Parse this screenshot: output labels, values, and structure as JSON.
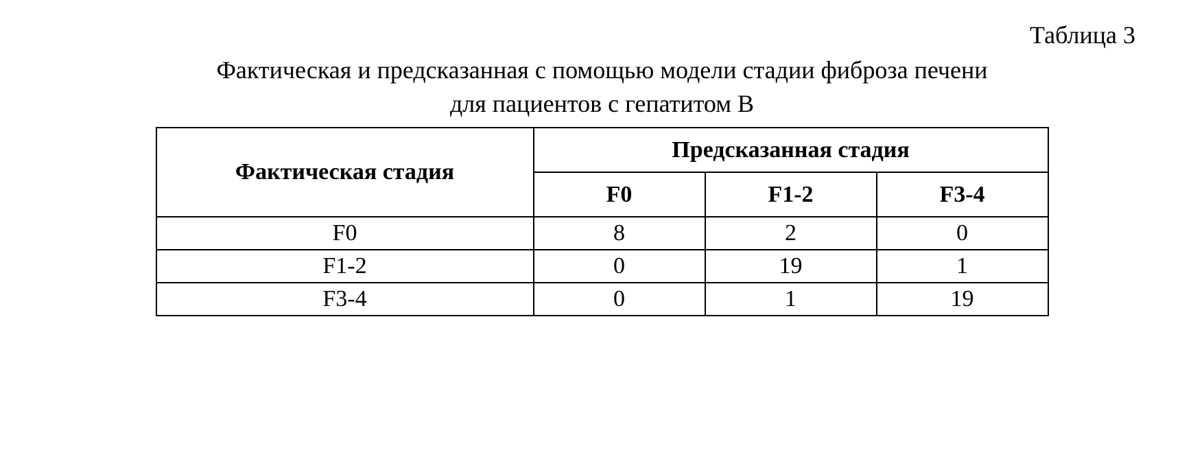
{
  "table_number": "Таблица 3",
  "caption_line1": "Фактическая и предсказанная с помощью модели стадии фиброза печени",
  "caption_line2": "для пациентов с гепатитом B",
  "headers": {
    "actual": "Фактическая стадия",
    "predicted": "Предсказанная стадия",
    "sub": {
      "c0": "F0",
      "c1": "F1-2",
      "c2": "F3-4"
    }
  },
  "rows": [
    {
      "label": "F0",
      "c0": "8",
      "c1": "2",
      "c2": "0"
    },
    {
      "label": "F1-2",
      "c0": "0",
      "c1": "19",
      "c2": "1"
    },
    {
      "label": "F3-4",
      "c0": "0",
      "c1": "1",
      "c2": "19"
    }
  ]
}
